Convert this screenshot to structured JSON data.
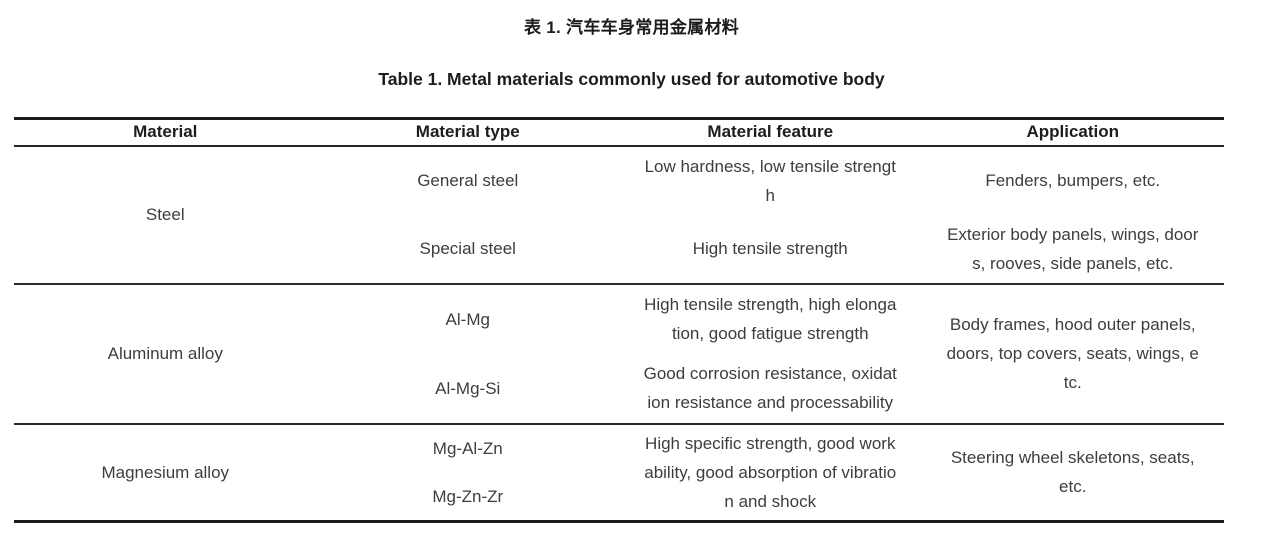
{
  "page": {
    "title_zh": "表 1. 汽车车身常用金属材料",
    "title_en": "Table 1. Metal materials commonly used for automotive body"
  },
  "table": {
    "headers": [
      "Material",
      "Material type",
      "Material feature",
      "Application"
    ],
    "sections": [
      {
        "material": "Steel",
        "rows": [
          {
            "type": "General steel",
            "feature": "Low hardness, low tensile strengt\nh",
            "application": "Fenders, bumpers, etc."
          },
          {
            "type": "Special steel",
            "feature": "High tensile strength",
            "application": "Exterior body panels, wings, door\ns, rooves, side panels, etc."
          }
        ]
      },
      {
        "material": "Aluminum alloy",
        "rows": [
          {
            "type": "Al-Mg",
            "feature": "High tensile strength, high elonga\ntion, good fatigue strength"
          },
          {
            "type": "Al-Mg-Si",
            "feature": "Good corrosion resistance, oxidat\nion resistance and processability"
          }
        ],
        "application": "Body frames, hood outer panels,\ndoors, top covers, seats, wings, e\ntc."
      },
      {
        "material": "Magnesium alloy",
        "types": [
          "Mg-Al-Zn",
          "Mg-Zn-Zr"
        ],
        "feature": "High specific strength, good work\nability, good absorption of vibratio\nn and shock",
        "application": "Steering wheel skeletons, seats,\netc."
      }
    ]
  }
}
